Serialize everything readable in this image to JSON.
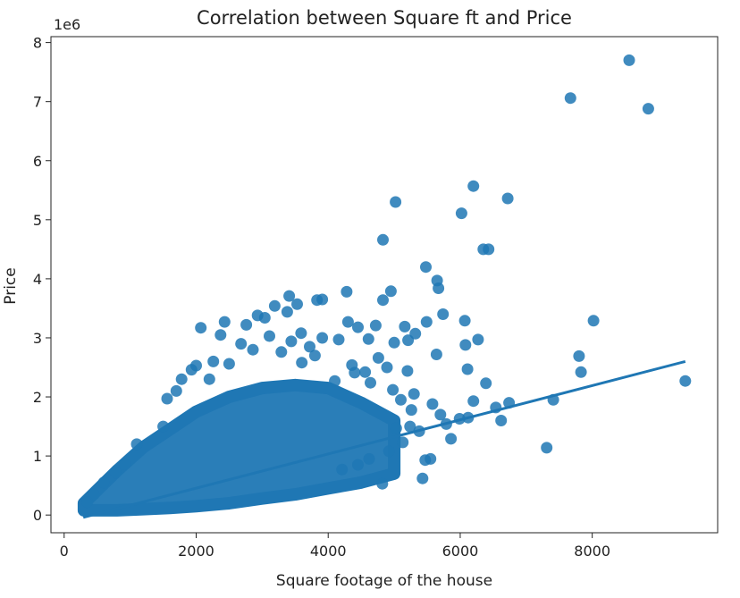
{
  "chart_data": {
    "type": "scatter",
    "title": "Correlation between Square ft and Price",
    "xlabel": "Square footage of the house",
    "ylabel": "Price",
    "y_offset_text": "1e6",
    "xlim": [
      -200,
      9900
    ],
    "ylim": [
      -0.3,
      8.1
    ],
    "y_unit_multiplier": 1000000,
    "x_ticks": [
      0,
      2000,
      4000,
      6000,
      8000
    ],
    "x_tick_labels": [
      "0",
      "2000",
      "4000",
      "6000",
      "8000"
    ],
    "y_ticks": [
      0,
      1,
      2,
      3,
      4,
      5,
      6,
      7,
      8
    ],
    "y_tick_labels": [
      "0",
      "1",
      "2",
      "3",
      "4",
      "5",
      "6",
      "7",
      "8"
    ],
    "grid": false,
    "point_color": "#1f77b4",
    "regression_line": {
      "x": [
        290,
        9410
      ],
      "y": [
        -0.04,
        2.6
      ]
    },
    "dense_band": {
      "x": [
        300,
        800,
        1200,
        1600,
        2000,
        2500,
        3000,
        3500,
        4000,
        4500,
        5000
      ],
      "lower": [
        0.08,
        0.08,
        0.1,
        0.12,
        0.15,
        0.2,
        0.28,
        0.35,
        0.45,
        0.55,
        0.7
      ],
      "upper": [
        0.2,
        0.75,
        1.15,
        1.45,
        1.75,
        2.0,
        2.15,
        2.2,
        2.15,
        1.9,
        1.6
      ]
    },
    "points": [
      [
        8560,
        7.7
      ],
      [
        7670,
        7.06
      ],
      [
        8850,
        6.88
      ],
      [
        6200,
        5.57
      ],
      [
        6720,
        5.36
      ],
      [
        5020,
        5.3
      ],
      [
        6020,
        5.11
      ],
      [
        4830,
        4.66
      ],
      [
        6350,
        4.5
      ],
      [
        6430,
        4.5
      ],
      [
        5480,
        4.2
      ],
      [
        5650,
        3.97
      ],
      [
        5670,
        3.84
      ],
      [
        4950,
        3.79
      ],
      [
        4830,
        3.64
      ],
      [
        4280,
        3.78
      ],
      [
        3410,
        3.71
      ],
      [
        3910,
        3.65
      ],
      [
        3830,
        3.64
      ],
      [
        3530,
        3.57
      ],
      [
        3190,
        3.54
      ],
      [
        3380,
        3.44
      ],
      [
        2930,
        3.38
      ],
      [
        3040,
        3.34
      ],
      [
        5740,
        3.4
      ],
      [
        6070,
        3.29
      ],
      [
        8020,
        3.29
      ],
      [
        4300,
        3.27
      ],
      [
        4450,
        3.18
      ],
      [
        4720,
        3.21
      ],
      [
        5160,
        3.19
      ],
      [
        5320,
        3.07
      ],
      [
        5490,
        3.27
      ],
      [
        2430,
        3.27
      ],
      [
        2760,
        3.22
      ],
      [
        2070,
        3.17
      ],
      [
        2370,
        3.05
      ],
      [
        3590,
        3.08
      ],
      [
        3110,
        3.03
      ],
      [
        3910,
        3.0
      ],
      [
        4160,
        2.97
      ],
      [
        4610,
        2.98
      ],
      [
        5000,
        2.92
      ],
      [
        5210,
        2.96
      ],
      [
        6270,
        2.97
      ],
      [
        6080,
        2.88
      ],
      [
        2860,
        2.8
      ],
      [
        3290,
        2.76
      ],
      [
        7800,
        2.69
      ],
      [
        7830,
        2.42
      ],
      [
        4760,
        2.66
      ],
      [
        4360,
        2.54
      ],
      [
        4560,
        2.42
      ],
      [
        4890,
        2.5
      ],
      [
        5200,
        2.44
      ],
      [
        5640,
        2.72
      ],
      [
        6110,
        2.47
      ],
      [
        1930,
        2.46
      ],
      [
        2000,
        2.53
      ],
      [
        2260,
        2.6
      ],
      [
        2500,
        2.56
      ],
      [
        6390,
        2.23
      ],
      [
        6200,
        1.93
      ],
      [
        6540,
        1.82
      ],
      [
        6620,
        1.6
      ],
      [
        6740,
        1.9
      ],
      [
        7410,
        1.95
      ],
      [
        9410,
        2.27
      ],
      [
        7310,
        1.14
      ],
      [
        5790,
        1.54
      ],
      [
        5860,
        1.29
      ],
      [
        5990,
        1.63
      ],
      [
        6120,
        1.65
      ],
      [
        5470,
        0.93
      ],
      [
        5550,
        0.95
      ],
      [
        5430,
        0.62
      ],
      [
        4820,
        0.53
      ],
      [
        5240,
        1.5
      ],
      [
        5380,
        1.42
      ],
      [
        5030,
        1.47
      ],
      [
        5130,
        1.23
      ],
      [
        4920,
        1.08
      ],
      [
        4620,
        0.95
      ],
      [
        4450,
        0.85
      ],
      [
        4210,
        0.77
      ],
      [
        1560,
        1.97
      ],
      [
        1500,
        1.5
      ],
      [
        1100,
        1.2
      ],
      [
        920,
        0.86
      ],
      [
        780,
        0.72
      ],
      [
        600,
        0.55
      ],
      [
        450,
        0.35
      ],
      [
        350,
        0.22
      ],
      [
        5300,
        2.05
      ],
      [
        4980,
        2.12
      ],
      [
        4640,
        2.24
      ],
      [
        4400,
        2.41
      ],
      [
        4100,
        2.27
      ],
      [
        5260,
        1.78
      ],
      [
        5580,
        1.88
      ],
      [
        5700,
        1.7
      ],
      [
        5100,
        1.95
      ],
      [
        3800,
        2.7
      ],
      [
        3600,
        2.58
      ],
      [
        3440,
        2.94
      ],
      [
        3720,
        2.85
      ],
      [
        2680,
        2.9
      ],
      [
        2200,
        2.3
      ],
      [
        1780,
        2.3
      ],
      [
        1700,
        2.1
      ]
    ]
  }
}
